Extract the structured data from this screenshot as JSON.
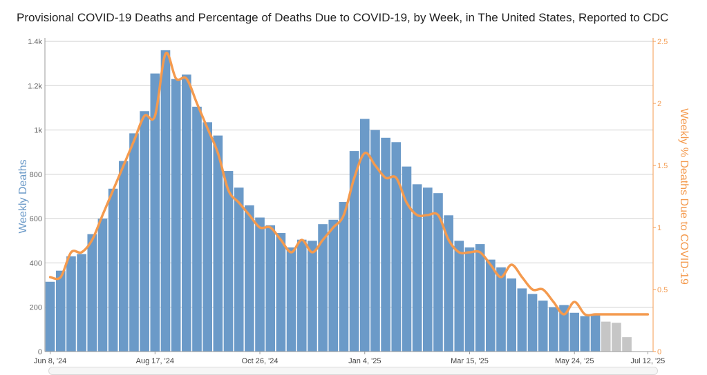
{
  "chart_data": {
    "type": "bar+line",
    "title": "Provisional COVID-19 Deaths and Percentage of Deaths Due to COVID-19, by Week, in The United States, Reported to CDC",
    "ylabel": "Weekly Deaths",
    "y2label": "Weekly % Deaths Due to COVID-19",
    "ylim": [
      0,
      1400
    ],
    "y2lim": [
      0,
      2.5
    ],
    "y_ticks": [
      {
        "value": 0,
        "label": "0"
      },
      {
        "value": 200,
        "label": "200"
      },
      {
        "value": 400,
        "label": "400"
      },
      {
        "value": 600,
        "label": "600"
      },
      {
        "value": 800,
        "label": "800"
      },
      {
        "value": 1000,
        "label": "1k"
      },
      {
        "value": 1200,
        "label": "1.2k"
      },
      {
        "value": 1400,
        "label": "1.4k"
      }
    ],
    "y2_ticks": [
      {
        "value": 0,
        "label": "0"
      },
      {
        "value": 0.5,
        "label": "0.5"
      },
      {
        "value": 1,
        "label": "1"
      },
      {
        "value": 1.5,
        "label": "1.5"
      },
      {
        "value": 2,
        "label": "2"
      },
      {
        "value": 2.5,
        "label": "2.5"
      }
    ],
    "x_ticks": [
      {
        "index": 0,
        "label": "Jun 8, '24"
      },
      {
        "index": 10,
        "label": "Aug 17, '24"
      },
      {
        "index": 20,
        "label": "Oct 26, '24"
      },
      {
        "index": 30,
        "label": "Jan 4, '25"
      },
      {
        "index": 40,
        "label": "Mar 15, '25"
      },
      {
        "index": 50,
        "label": "May 24, '25"
      },
      {
        "index": 57,
        "label": "Jul 12, '25"
      }
    ],
    "n_weeks": 58,
    "bars": {
      "name": "Weekly Deaths",
      "values": [
        315,
        365,
        430,
        440,
        530,
        600,
        735,
        860,
        985,
        1085,
        1255,
        1360,
        1230,
        1250,
        1105,
        1035,
        975,
        815,
        740,
        660,
        605,
        570,
        535,
        470,
        505,
        500,
        575,
        595,
        675,
        905,
        1050,
        1000,
        965,
        945,
        835,
        755,
        740,
        715,
        615,
        500,
        470,
        485,
        415,
        380,
        330,
        285,
        260,
        230,
        200,
        210,
        175,
        160,
        170,
        135,
        130,
        65,
        0,
        0
      ],
      "provisional": [
        false,
        false,
        false,
        false,
        false,
        false,
        false,
        false,
        false,
        false,
        false,
        false,
        false,
        false,
        false,
        false,
        false,
        false,
        false,
        false,
        false,
        false,
        false,
        false,
        false,
        false,
        false,
        false,
        false,
        false,
        false,
        false,
        false,
        false,
        false,
        false,
        false,
        false,
        false,
        false,
        false,
        false,
        false,
        false,
        false,
        false,
        false,
        false,
        false,
        false,
        false,
        false,
        false,
        true,
        true,
        true,
        false,
        false
      ]
    },
    "line": {
      "name": "Weekly % Deaths Due to COVID-19",
      "values": [
        0.6,
        0.6,
        0.8,
        0.8,
        0.9,
        1.1,
        1.3,
        1.5,
        1.7,
        1.9,
        1.9,
        2.4,
        2.2,
        2.2,
        2.0,
        1.8,
        1.6,
        1.3,
        1.2,
        1.1,
        1.0,
        1.0,
        0.9,
        0.8,
        0.9,
        0.8,
        0.9,
        1.0,
        1.1,
        1.4,
        1.6,
        1.5,
        1.4,
        1.4,
        1.2,
        1.1,
        1.1,
        1.1,
        0.9,
        0.8,
        0.8,
        0.8,
        0.7,
        0.6,
        0.7,
        0.6,
        0.5,
        0.5,
        0.4,
        0.3,
        0.4,
        0.3,
        0.3,
        0.3,
        0.3,
        0.3,
        0.3,
        0.3
      ]
    },
    "colors": {
      "bar": "#6b9ac8",
      "bar_provisional": "#c6c6c6",
      "line": "#f49a4e",
      "grid": "#cfcfcf",
      "left_axis_title": "#6b9ac8",
      "right_axis_title": "#f49a4e",
      "right_tick_labels": "#f49a4e",
      "left_tick_labels": "#666666"
    }
  }
}
